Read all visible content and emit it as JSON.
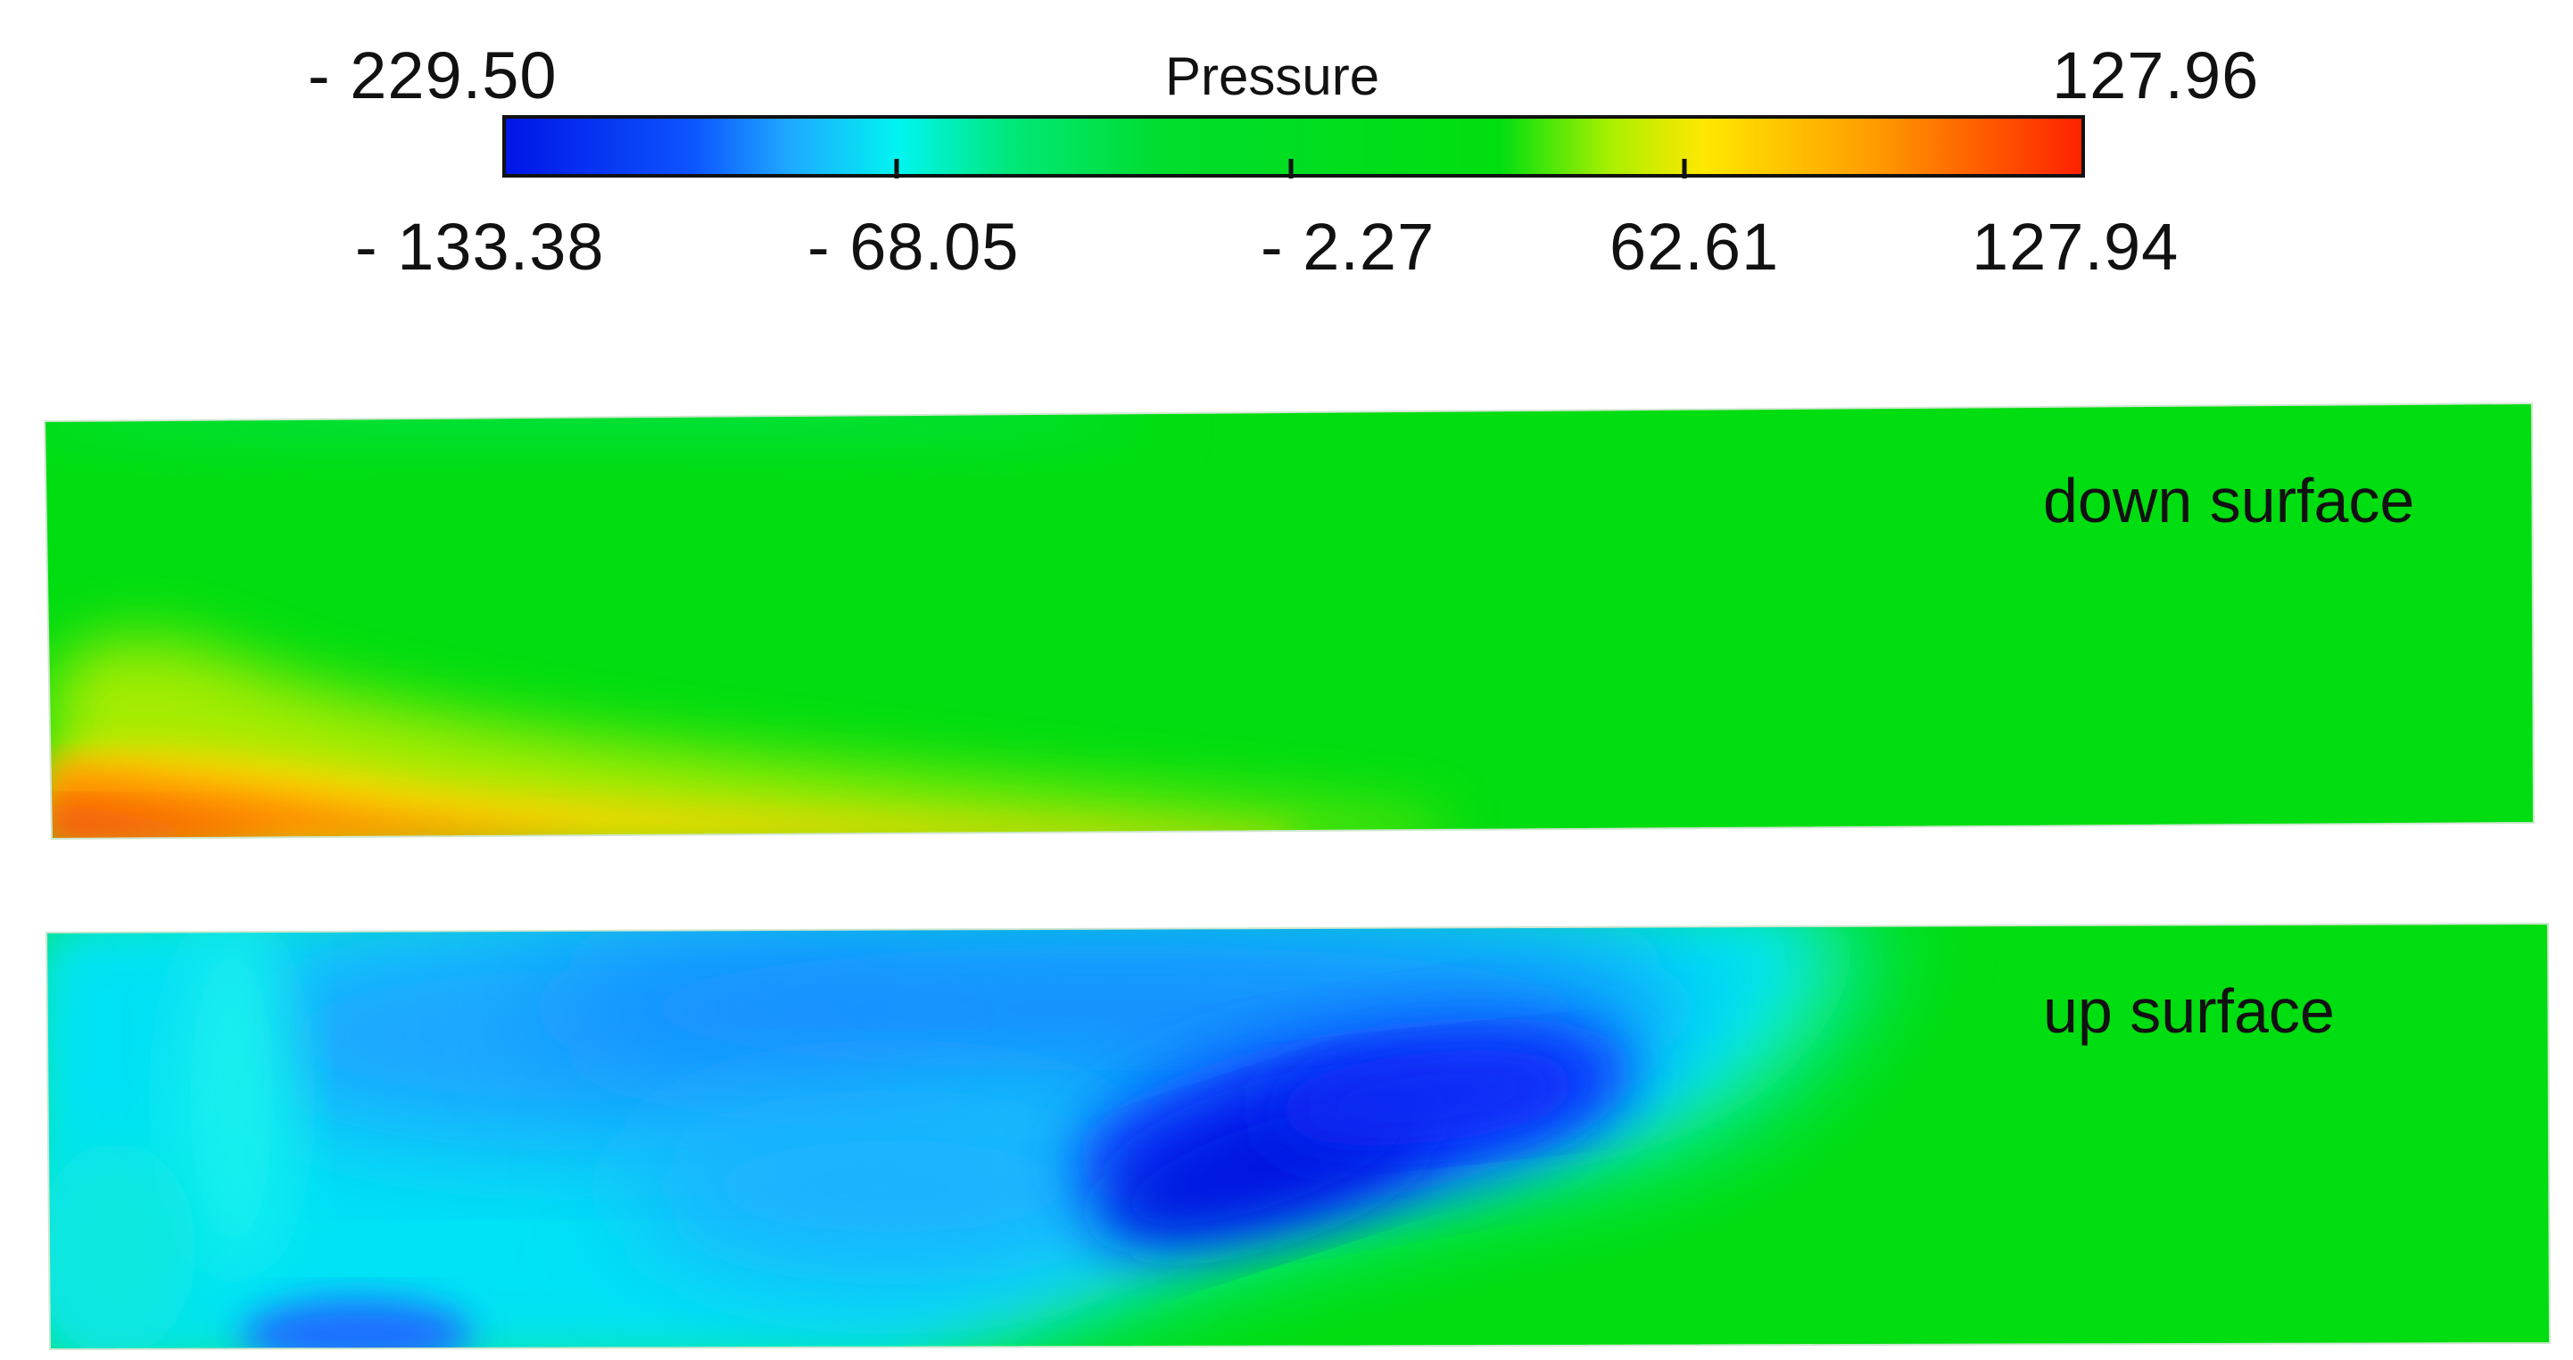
{
  "colorbar": {
    "title": "Pressure",
    "min_label": "- 229.50",
    "max_label": "127.96",
    "tick_labels": [
      "- 133.38",
      "- 68.05",
      "- 2.27",
      "62.61",
      "127.94"
    ],
    "colors": [
      "#0015e6",
      "#0d55ff",
      "#1fa8ff",
      "#00f5f0",
      "#00e87a",
      "#00dd2c",
      "#00de10",
      "#a8f000",
      "#ffe800",
      "#ff9a00",
      "#ff2000"
    ]
  },
  "panels": [
    {
      "label": "down surface"
    },
    {
      "label": "up surface"
    }
  ]
}
